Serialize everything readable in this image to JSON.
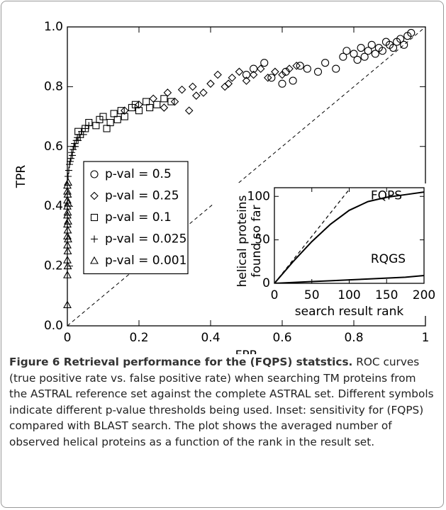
{
  "chart_data": [
    {
      "type": "scatter",
      "xlabel": "FPR",
      "ylabel": "TPR",
      "xlim": [
        0,
        1
      ],
      "ylim": [
        0,
        1
      ],
      "xticks": [
        0,
        0.2,
        0.4,
        0.6,
        0.8,
        1
      ],
      "yticks": [
        {
          "value": 0,
          "label": "0.0"
        },
        0.2,
        0.4,
        0.6,
        0.8,
        {
          "value": 1,
          "label": "1.0"
        }
      ],
      "series": [
        {
          "name": "p-val = 0.5",
          "marker": "circle",
          "color": "#000000",
          "x": [
            0.5,
            0.52,
            0.55,
            0.57,
            0.6,
            0.61,
            0.63,
            0.65,
            0.67,
            0.7,
            0.72,
            0.75,
            0.77,
            0.78,
            0.8,
            0.81,
            0.82,
            0.83,
            0.84,
            0.85,
            0.86,
            0.87,
            0.88,
            0.89,
            0.9,
            0.91,
            0.92,
            0.93,
            0.94,
            0.95,
            0.96
          ],
          "values": [
            0.84,
            0.86,
            0.88,
            0.83,
            0.81,
            0.85,
            0.82,
            0.87,
            0.86,
            0.85,
            0.88,
            0.86,
            0.9,
            0.92,
            0.91,
            0.89,
            0.93,
            0.9,
            0.92,
            0.94,
            0.91,
            0.93,
            0.92,
            0.95,
            0.94,
            0.93,
            0.95,
            0.96,
            0.94,
            0.97,
            0.98
          ]
        },
        {
          "name": "p-val = 0.25",
          "marker": "diamond",
          "color": "#000000",
          "x": [
            0.16,
            0.2,
            0.24,
            0.27,
            0.3,
            0.32,
            0.34,
            0.36,
            0.38,
            0.4,
            0.42,
            0.44,
            0.46,
            0.48,
            0.5,
            0.52,
            0.54,
            0.56,
            0.58,
            0.6,
            0.62,
            0.64,
            0.35,
            0.28,
            0.45
          ],
          "values": [
            0.72,
            0.74,
            0.76,
            0.73,
            0.75,
            0.79,
            0.72,
            0.77,
            0.78,
            0.81,
            0.84,
            0.8,
            0.83,
            0.85,
            0.82,
            0.84,
            0.86,
            0.83,
            0.85,
            0.84,
            0.86,
            0.87,
            0.8,
            0.78,
            0.81
          ]
        },
        {
          "name": "p-val = 0.1",
          "marker": "square",
          "color": "#000000",
          "x": [
            0.03,
            0.05,
            0.06,
            0.08,
            0.09,
            0.1,
            0.12,
            0.13,
            0.15,
            0.16,
            0.18,
            0.19,
            0.2,
            0.22,
            0.23,
            0.25,
            0.27,
            0.29,
            0.11,
            0.14
          ],
          "values": [
            0.65,
            0.66,
            0.68,
            0.67,
            0.69,
            0.7,
            0.68,
            0.71,
            0.72,
            0.7,
            0.73,
            0.74,
            0.72,
            0.75,
            0.73,
            0.74,
            0.76,
            0.75,
            0.66,
            0.69
          ]
        },
        {
          "name": "p-val = 0.025",
          "marker": "plus",
          "color": "#000000",
          "x": [
            0.002,
            0.004,
            0.006,
            0.008,
            0.01,
            0.012,
            0.014,
            0.016,
            0.018,
            0.02,
            0.022,
            0.025,
            0.028,
            0.03,
            0.033,
            0.036,
            0.04,
            0.045,
            0.05,
            0.06
          ],
          "values": [
            0.5,
            0.52,
            0.54,
            0.55,
            0.56,
            0.58,
            0.57,
            0.59,
            0.6,
            0.61,
            0.6,
            0.62,
            0.63,
            0.62,
            0.64,
            0.63,
            0.65,
            0.64,
            0.66,
            0.67
          ]
        },
        {
          "name": "p-val = 0.001",
          "marker": "triangle",
          "color": "#000000",
          "x": [
            0,
            0,
            0.001,
            0,
            0.001,
            0,
            0.002,
            0,
            0.001,
            0,
            0.002,
            0,
            0.001,
            0,
            0.002,
            0,
            0.001,
            0,
            0,
            0.002
          ],
          "values": [
            0.07,
            0.17,
            0.2,
            0.22,
            0.25,
            0.27,
            0.29,
            0.3,
            0.32,
            0.34,
            0.35,
            0.37,
            0.38,
            0.4,
            0.41,
            0.42,
            0.44,
            0.45,
            0.47,
            0.48
          ]
        }
      ]
    },
    {
      "type": "line",
      "xlabel": "search result rank",
      "ylabel": [
        "helical proteins",
        "found so far"
      ],
      "xlim": [
        0,
        200
      ],
      "ylim": [
        0,
        110
      ],
      "xticks": [
        0,
        50,
        100,
        150,
        200
      ],
      "yticks": [
        0,
        50,
        100
      ],
      "x": [
        0,
        25,
        50,
        75,
        100,
        125,
        150,
        175,
        200
      ],
      "series": [
        {
          "name": "FQPS",
          "color": "#000000",
          "values": [
            0,
            25,
            48,
            68,
            84,
            94,
            99,
            102,
            105
          ]
        },
        {
          "name": "RQGS",
          "color": "#000000",
          "values": [
            0,
            1,
            2,
            3,
            4,
            5,
            6,
            7,
            9
          ]
        },
        {
          "color": "#000000",
          "dash": true,
          "values": [
            0,
            27,
            54,
            81,
            108,
            null,
            null,
            null,
            null
          ]
        }
      ]
    }
  ],
  "caption": {
    "title": "Figure 6 Retrieval performance for the (FQPS) statstics.",
    "text": "ROC curves (true positive rate vs. false positive rate) when searching TM proteins from the ASTRAL reference set against the complete ASTRAL set. Different symbols indicate different p-value thresholds being used. Inset: sensitivity for (FQPS) compared with BLAST search. The plot shows the averaged number of observed helical proteins as a function of the rank in the result set."
  }
}
